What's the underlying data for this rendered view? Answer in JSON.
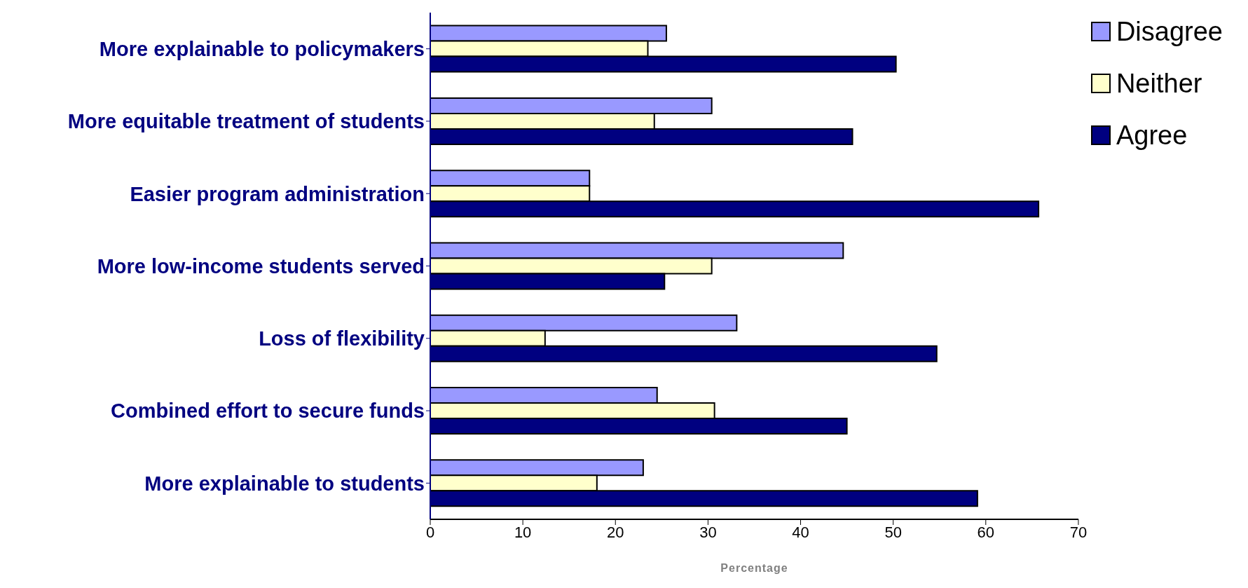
{
  "chart_data": {
    "type": "bar",
    "orientation": "horizontal",
    "xlabel": "Percentage",
    "categories": [
      "More explainable to policymakers",
      "More equitable treatment of students",
      "Easier program administration",
      "More low-income students served",
      "Loss of flexibility",
      "Combined effort to secure funds",
      "More explainable to students"
    ],
    "series": [
      {
        "name": "Disagree",
        "color": "#9999ff",
        "values": [
          25.5,
          30.4,
          17.2,
          44.6,
          33.1,
          24.5,
          23.0
        ]
      },
      {
        "name": "Neither",
        "color": "#ffffcc",
        "values": [
          23.5,
          24.2,
          17.2,
          30.4,
          12.4,
          30.7,
          18.0
        ]
      },
      {
        "name": "Agree",
        "color": "#000080",
        "values": [
          50.3,
          45.6,
          65.7,
          25.3,
          54.7,
          45.0,
          59.1
        ]
      }
    ],
    "xlim": [
      0,
      70
    ],
    "xticks": [
      0,
      10,
      20,
      30,
      40,
      50,
      60,
      70
    ],
    "grid": false,
    "legend": "top right"
  }
}
